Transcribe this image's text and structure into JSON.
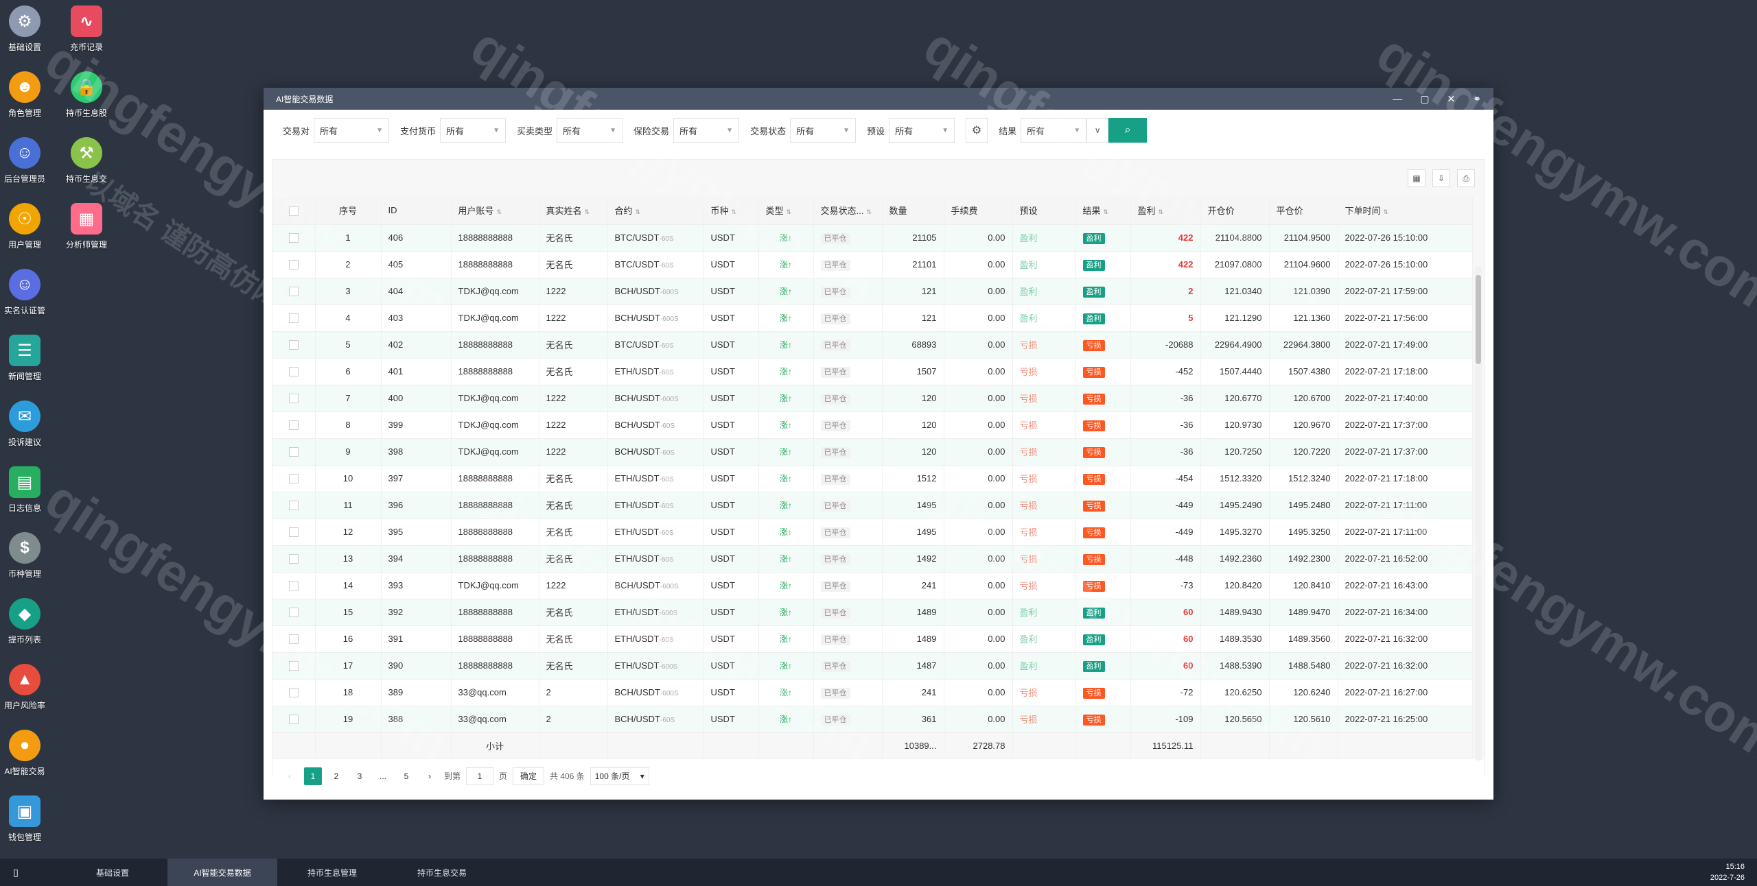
{
  "desktop": {
    "icons": [
      {
        "label": "基础设置",
        "name": "gear-icon",
        "color": "#8e9aaf",
        "glyph": "⚙"
      },
      {
        "label": "充币记录",
        "name": "chart-line-icon",
        "color": "#e84a5f",
        "glyph": "∿"
      },
      {
        "label": "角色管理",
        "name": "role-icon",
        "color": "#f39c12",
        "glyph": "☻"
      },
      {
        "label": "持币生息股",
        "name": "lock-icon",
        "color": "#2ecc71",
        "glyph": "🔒"
      },
      {
        "label": "后台管理员",
        "name": "admin-icon",
        "color": "#4a6fd6",
        "glyph": "☺"
      },
      {
        "label": "持币生息交",
        "name": "hammer-icon",
        "color": "#8bc34a",
        "glyph": "⚒"
      },
      {
        "label": "用户管理",
        "name": "user-search-icon",
        "color": "#f0a500",
        "glyph": "☉"
      },
      {
        "label": "分析师管理",
        "name": "shop-icon",
        "color": "#ff6b8a",
        "glyph": "▦"
      },
      {
        "label": "实名认证管",
        "name": "id-card-icon",
        "color": "#5b6ee1",
        "glyph": "☺"
      },
      {
        "label": "新闻管理",
        "name": "news-icon",
        "color": "#26a69a",
        "glyph": "☰"
      },
      {
        "label": "投诉建议",
        "name": "feedback-icon",
        "color": "#2d9cdb",
        "glyph": "✉"
      },
      {
        "label": "日志信息",
        "name": "log-icon",
        "color": "#27ae60",
        "glyph": "▤"
      },
      {
        "label": "币种管理",
        "name": "dollar-icon",
        "color": "#7f8c8d",
        "glyph": "$"
      },
      {
        "label": "提币列表",
        "name": "withdraw-icon",
        "color": "#16a085",
        "glyph": "◆"
      },
      {
        "label": "用户风险率",
        "name": "alarm-icon",
        "color": "#e74c3c",
        "glyph": "▲"
      },
      {
        "label": "AI智能交易",
        "name": "ai-trade-icon",
        "color": "#f39c12",
        "glyph": "●"
      },
      {
        "label": "钱包管理",
        "name": "wallet-icon",
        "color": "#3498db",
        "glyph": "▣"
      }
    ]
  },
  "window": {
    "title": "AI智能交易数据",
    "controls": [
      "—",
      "▢",
      "✕",
      "⚭"
    ]
  },
  "filters": [
    {
      "label": "交易对",
      "value": "所有"
    },
    {
      "label": "支付货币",
      "value": "所有"
    },
    {
      "label": "买卖类型",
      "value": "所有"
    },
    {
      "label": "保险交易",
      "value": "所有"
    },
    {
      "label": "交易状态",
      "value": "所有"
    },
    {
      "label": "预设",
      "value": "所有"
    },
    {
      "label": "结果",
      "value": "所有"
    }
  ],
  "table": {
    "headers": [
      "序号",
      "ID",
      "用户账号",
      "真实姓名",
      "合约",
      "币种",
      "类型",
      "交易状态...",
      "数量",
      "手续费",
      "预设",
      "结果",
      "盈利",
      "开仓价",
      "平仓价",
      "下单时间"
    ],
    "rows": [
      {
        "no": "1",
        "id": "406",
        "account": "18888888888",
        "name": "无名氏",
        "pair": "BTC/USDT",
        "period": "-60S",
        "coin": "USDT",
        "type": "涨↑",
        "status": "已平仓",
        "qty": "21105",
        "fee": "0.00",
        "preset": "盈利",
        "result": "盈利",
        "pnl": "422",
        "open": "21104.8800",
        "close": "21104.9500",
        "time": "2022-07-26 15:10:00"
      },
      {
        "no": "2",
        "id": "405",
        "account": "18888888888",
        "name": "无名氏",
        "pair": "BTC/USDT",
        "period": "-60S",
        "coin": "USDT",
        "type": "涨↑",
        "status": "已平仓",
        "qty": "21101",
        "fee": "0.00",
        "preset": "盈利",
        "result": "盈利",
        "pnl": "422",
        "open": "21097.0800",
        "close": "21104.9600",
        "time": "2022-07-26 15:10:00"
      },
      {
        "no": "3",
        "id": "404",
        "account": "TDKJ@qq.com",
        "name": "1222",
        "pair": "BCH/USDT",
        "period": "-600S",
        "coin": "USDT",
        "type": "涨↑",
        "status": "已平仓",
        "qty": "121",
        "fee": "0.00",
        "preset": "盈利",
        "result": "盈利",
        "pnl": "2",
        "open": "121.0340",
        "close": "121.0390",
        "time": "2022-07-21 17:59:00"
      },
      {
        "no": "4",
        "id": "403",
        "account": "TDKJ@qq.com",
        "name": "1222",
        "pair": "BCH/USDT",
        "period": "-600S",
        "coin": "USDT",
        "type": "涨↑",
        "status": "已平仓",
        "qty": "121",
        "fee": "0.00",
        "preset": "盈利",
        "result": "盈利",
        "pnl": "5",
        "open": "121.1290",
        "close": "121.1360",
        "time": "2022-07-21 17:56:00"
      },
      {
        "no": "5",
        "id": "402",
        "account": "18888888888",
        "name": "无名氏",
        "pair": "BTC/USDT",
        "period": "-60S",
        "coin": "USDT",
        "type": "涨↑",
        "status": "已平仓",
        "qty": "68893",
        "fee": "0.00",
        "preset": "亏损",
        "result": "亏损",
        "pnl": "-20688",
        "open": "22964.4900",
        "close": "22964.3800",
        "time": "2022-07-21 17:49:00"
      },
      {
        "no": "6",
        "id": "401",
        "account": "18888888888",
        "name": "无名氏",
        "pair": "ETH/USDT",
        "period": "-60S",
        "coin": "USDT",
        "type": "涨↑",
        "status": "已平仓",
        "qty": "1507",
        "fee": "0.00",
        "preset": "亏损",
        "result": "亏损",
        "pnl": "-452",
        "open": "1507.4440",
        "close": "1507.4380",
        "time": "2022-07-21 17:18:00"
      },
      {
        "no": "7",
        "id": "400",
        "account": "TDKJ@qq.com",
        "name": "1222",
        "pair": "BCH/USDT",
        "period": "-600S",
        "coin": "USDT",
        "type": "涨↑",
        "status": "已平仓",
        "qty": "120",
        "fee": "0.00",
        "preset": "亏损",
        "result": "亏损",
        "pnl": "-36",
        "open": "120.6770",
        "close": "120.6700",
        "time": "2022-07-21 17:40:00"
      },
      {
        "no": "8",
        "id": "399",
        "account": "TDKJ@qq.com",
        "name": "1222",
        "pair": "BCH/USDT",
        "period": "-60S",
        "coin": "USDT",
        "type": "涨↑",
        "status": "已平仓",
        "qty": "120",
        "fee": "0.00",
        "preset": "亏损",
        "result": "亏损",
        "pnl": "-36",
        "open": "120.9730",
        "close": "120.9670",
        "time": "2022-07-21 17:37:00"
      },
      {
        "no": "9",
        "id": "398",
        "account": "TDKJ@qq.com",
        "name": "1222",
        "pair": "BCH/USDT",
        "period": "-60S",
        "coin": "USDT",
        "type": "涨↑",
        "status": "已平仓",
        "qty": "120",
        "fee": "0.00",
        "preset": "亏损",
        "result": "亏损",
        "pnl": "-36",
        "open": "120.7250",
        "close": "120.7220",
        "time": "2022-07-21 17:37:00"
      },
      {
        "no": "10",
        "id": "397",
        "account": "18888888888",
        "name": "无名氏",
        "pair": "ETH/USDT",
        "period": "-60S",
        "coin": "USDT",
        "type": "涨↑",
        "status": "已平仓",
        "qty": "1512",
        "fee": "0.00",
        "preset": "亏损",
        "result": "亏损",
        "pnl": "-454",
        "open": "1512.3320",
        "close": "1512.3240",
        "time": "2022-07-21 17:18:00"
      },
      {
        "no": "11",
        "id": "396",
        "account": "18888888888",
        "name": "无名氏",
        "pair": "ETH/USDT",
        "period": "-60S",
        "coin": "USDT",
        "type": "涨↑",
        "status": "已平仓",
        "qty": "1495",
        "fee": "0.00",
        "preset": "亏损",
        "result": "亏损",
        "pnl": "-449",
        "open": "1495.2490",
        "close": "1495.2480",
        "time": "2022-07-21 17:11:00"
      },
      {
        "no": "12",
        "id": "395",
        "account": "18888888888",
        "name": "无名氏",
        "pair": "ETH/USDT",
        "period": "-60S",
        "coin": "USDT",
        "type": "涨↑",
        "status": "已平仓",
        "qty": "1495",
        "fee": "0.00",
        "preset": "亏损",
        "result": "亏损",
        "pnl": "-449",
        "open": "1495.3270",
        "close": "1495.3250",
        "time": "2022-07-21 17:11:00"
      },
      {
        "no": "13",
        "id": "394",
        "account": "18888888888",
        "name": "无名氏",
        "pair": "ETH/USDT",
        "period": "-60S",
        "coin": "USDT",
        "type": "涨↑",
        "status": "已平仓",
        "qty": "1492",
        "fee": "0.00",
        "preset": "亏损",
        "result": "亏损",
        "pnl": "-448",
        "open": "1492.2360",
        "close": "1492.2300",
        "time": "2022-07-21 16:52:00"
      },
      {
        "no": "14",
        "id": "393",
        "account": "TDKJ@qq.com",
        "name": "1222",
        "pair": "BCH/USDT",
        "period": "-600S",
        "coin": "USDT",
        "type": "涨↑",
        "status": "已平仓",
        "qty": "241",
        "fee": "0.00",
        "preset": "亏损",
        "result": "亏损",
        "pnl": "-73",
        "open": "120.8420",
        "close": "120.8410",
        "time": "2022-07-21 16:43:00"
      },
      {
        "no": "15",
        "id": "392",
        "account": "18888888888",
        "name": "无名氏",
        "pair": "ETH/USDT",
        "period": "-600S",
        "coin": "USDT",
        "type": "涨↑",
        "status": "已平仓",
        "qty": "1489",
        "fee": "0.00",
        "preset": "盈利",
        "result": "盈利",
        "pnl": "60",
        "open": "1489.9430",
        "close": "1489.9470",
        "time": "2022-07-21 16:34:00"
      },
      {
        "no": "16",
        "id": "391",
        "account": "18888888888",
        "name": "无名氏",
        "pair": "ETH/USDT",
        "period": "-60S",
        "coin": "USDT",
        "type": "涨↑",
        "status": "已平仓",
        "qty": "1489",
        "fee": "0.00",
        "preset": "盈利",
        "result": "盈利",
        "pnl": "60",
        "open": "1489.3530",
        "close": "1489.3560",
        "time": "2022-07-21 16:32:00"
      },
      {
        "no": "17",
        "id": "390",
        "account": "18888888888",
        "name": "无名氏",
        "pair": "ETH/USDT",
        "period": "-600S",
        "coin": "USDT",
        "type": "涨↑",
        "status": "已平仓",
        "qty": "1487",
        "fee": "0.00",
        "preset": "盈利",
        "result": "盈利",
        "pnl": "60",
        "open": "1488.5390",
        "close": "1488.5480",
        "time": "2022-07-21 16:32:00"
      },
      {
        "no": "18",
        "id": "389",
        "account": "33@qq.com",
        "name": "2",
        "pair": "BCH/USDT",
        "period": "-600S",
        "coin": "USDT",
        "type": "涨↑",
        "status": "已平仓",
        "qty": "241",
        "fee": "0.00",
        "preset": "亏损",
        "result": "亏损",
        "pnl": "-72",
        "open": "120.6250",
        "close": "120.6240",
        "time": "2022-07-21 16:27:00"
      },
      {
        "no": "19",
        "id": "388",
        "account": "33@qq.com",
        "name": "2",
        "pair": "BCH/USDT",
        "period": "-60S",
        "coin": "USDT",
        "type": "涨↑",
        "status": "已平仓",
        "qty": "361",
        "fee": "0.00",
        "preset": "亏损",
        "result": "亏损",
        "pnl": "-109",
        "open": "120.5650",
        "close": "120.5610",
        "time": "2022-07-21 16:25:00"
      }
    ],
    "footer": {
      "label": "小计",
      "qty": "10389...",
      "fee": "2728.78",
      "pnl": "115125.11"
    }
  },
  "pager": {
    "pages": [
      "1",
      "2",
      "3",
      "...",
      "5"
    ],
    "goto_label": "到第",
    "goto_value": "1",
    "page_unit": "页",
    "confirm": "确定",
    "total": "共 406 条",
    "page_size": "100 条/页"
  },
  "taskbar": {
    "tabs": [
      "基础设置",
      "AI智能交易数据",
      "持币生息管理",
      "持币生息交易"
    ],
    "active_index": 1,
    "time": "15:16",
    "date": "2022-7-26"
  },
  "watermark": {
    "text": "qingfengymw.com",
    "subtext": "以域名 谨防高仿网站"
  },
  "colors": {
    "accent": "#16a085",
    "loss": "#ff5722",
    "profit_text": "#e53935",
    "desktop_bg": "#2d3543"
  }
}
